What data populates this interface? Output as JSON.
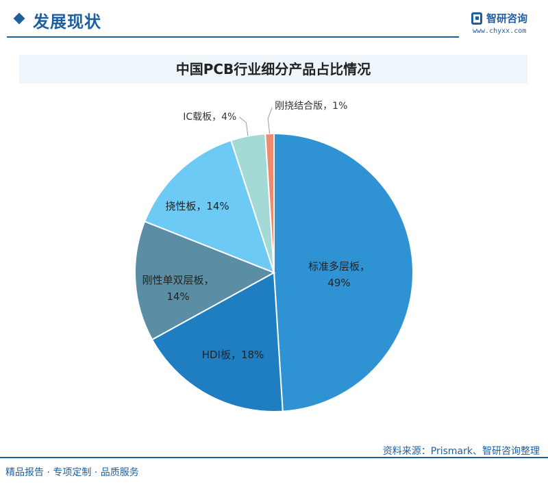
{
  "header": {
    "section_title": "发展现状",
    "logo_name": "智研咨询",
    "logo_url": "www.chyxx.com"
  },
  "chart_data": {
    "type": "pie",
    "title": "中国PCB行业细分产品占比情况",
    "slices": [
      {
        "name": "标准多层板",
        "value": 49,
        "label": "49%",
        "color": "#2f93d3"
      },
      {
        "name": "HDI板",
        "value": 18,
        "label": "18%",
        "color": "#1f7ec1"
      },
      {
        "name": "刚性单双层板",
        "value": 14,
        "label": "14%",
        "color": "#5b8ea4"
      },
      {
        "name": "挠性板",
        "value": 14,
        "label": "14%",
        "color": "#6ccaf5"
      },
      {
        "name": "IC载板",
        "value": 4,
        "label": "4%",
        "color": "#a3dad6"
      },
      {
        "name": "刚挠结合版",
        "value": 1,
        "label": "1%",
        "color": "#ef8a6e"
      }
    ]
  },
  "footer": {
    "source": "资料来源：Prismark、智研咨询整理",
    "services": "精品报告 · 专项定制 · 品质服务"
  }
}
